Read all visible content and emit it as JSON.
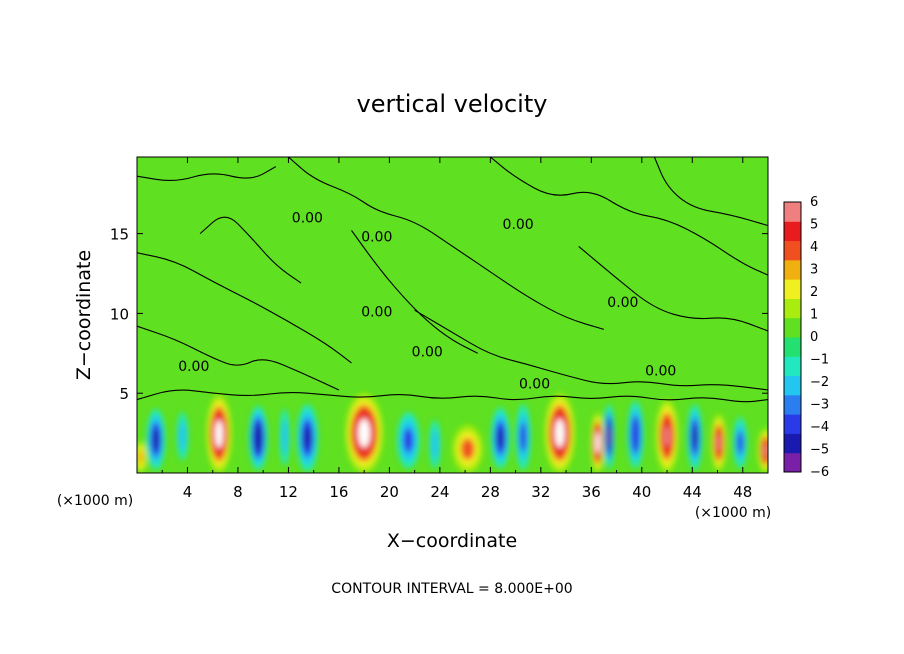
{
  "chart_data": {
    "type": "heatmap",
    "title": "vertical velocity",
    "xlabel": "X−coordinate",
    "ylabel": "Z−coordinate",
    "x_unit_left": "(×1000 m)",
    "x_unit_right": "(×1000 m)",
    "xlim": [
      0,
      50
    ],
    "ylim": [
      0,
      19.8
    ],
    "x_ticks": [
      4,
      8,
      12,
      16,
      20,
      24,
      28,
      32,
      36,
      40,
      44,
      48
    ],
    "y_ticks": [
      5,
      10,
      15
    ],
    "colorbar": {
      "min": -6,
      "max": 6,
      "ticks": [
        "6",
        "5",
        "4",
        "3",
        "2",
        "1",
        "0",
        "−1",
        "−2",
        "−3",
        "−4",
        "−5",
        "−6"
      ],
      "colors": [
        "#7a1fa8",
        "#1a1ab0",
        "#2a3ae8",
        "#2a7ef0",
        "#22c6f0",
        "#22e8c0",
        "#24e070",
        "#5fe020",
        "#a8ec10",
        "#f0f020",
        "#f0b010",
        "#f05020",
        "#e81c1c",
        "#f08080"
      ]
    },
    "contour_label": "0.00",
    "note": "CONTOUR INTERVAL = 8.000E+00",
    "cells": [
      {
        "x": 0.3,
        "z": 0.0,
        "w": 1.0,
        "h": 2.0,
        "v": 2.5
      },
      {
        "x": 1.5,
        "z": 0.2,
        "w": 1.5,
        "h": 3.8,
        "v": -3.8
      },
      {
        "x": 3.6,
        "z": 0.8,
        "w": 0.9,
        "h": 3.0,
        "v": -1.6
      },
      {
        "x": 6.5,
        "z": 0.0,
        "w": 2.0,
        "h": 4.9,
        "v": 6
      },
      {
        "x": 9.6,
        "z": 0.2,
        "w": 1.5,
        "h": 4.0,
        "v": -4.6
      },
      {
        "x": 11.7,
        "z": 0.5,
        "w": 0.8,
        "h": 3.5,
        "v": -1.8
      },
      {
        "x": 13.5,
        "z": 0.1,
        "w": 1.7,
        "h": 4.2,
        "v": -4.4
      },
      {
        "x": 18.0,
        "z": 0.0,
        "w": 3.0,
        "h": 5.0,
        "v": 6
      },
      {
        "x": 21.5,
        "z": 0.3,
        "w": 1.8,
        "h": 3.5,
        "v": -3.0
      },
      {
        "x": 23.6,
        "z": 0.3,
        "w": 0.9,
        "h": 3.0,
        "v": -2.0
      },
      {
        "x": 26.2,
        "z": 0.0,
        "w": 2.4,
        "h": 3.0,
        "v": 3.2
      },
      {
        "x": 28.8,
        "z": 0.3,
        "w": 1.5,
        "h": 3.8,
        "v": -4.2
      },
      {
        "x": 30.6,
        "z": 0.2,
        "w": 1.2,
        "h": 4.1,
        "v": -3.4
      },
      {
        "x": 33.5,
        "z": 0.0,
        "w": 2.4,
        "h": 5.0,
        "v": 6
      },
      {
        "x": 36.5,
        "z": 0.0,
        "w": 1.1,
        "h": 3.8,
        "v": 5.6
      },
      {
        "x": 37.4,
        "z": 0.3,
        "w": 0.9,
        "h": 4.0,
        "v": -5.0
      },
      {
        "x": 39.5,
        "z": 0.3,
        "w": 1.3,
        "h": 4.2,
        "v": -3.6
      },
      {
        "x": 42.0,
        "z": 0.0,
        "w": 1.8,
        "h": 4.6,
        "v": 5.4
      },
      {
        "x": 44.2,
        "z": 0.2,
        "w": 1.2,
        "h": 4.1,
        "v": -3.8
      },
      {
        "x": 46.1,
        "z": 0.1,
        "w": 1.2,
        "h": 3.6,
        "v": 4.8
      },
      {
        "x": 47.8,
        "z": 0.3,
        "w": 1.1,
        "h": 3.2,
        "v": -3.2
      },
      {
        "x": 49.8,
        "z": 0.0,
        "w": 1.2,
        "h": 2.8,
        "v": 4.8
      }
    ],
    "contours": [
      [
        [
          0,
          18.6
        ],
        [
          3,
          18.2
        ],
        [
          6,
          18.9
        ],
        [
          9,
          18.3
        ],
        [
          11,
          19.2
        ]
      ],
      [
        [
          12,
          19.8
        ],
        [
          14,
          18.4
        ],
        [
          17,
          17.5
        ],
        [
          19,
          16.4
        ],
        [
          22,
          15.8
        ],
        [
          25,
          14.2
        ],
        [
          28,
          12.6
        ],
        [
          31,
          11.0
        ],
        [
          34,
          9.7
        ],
        [
          37,
          9.0
        ]
      ],
      [
        [
          28,
          19.8
        ],
        [
          30,
          18.5
        ],
        [
          33,
          17.2
        ],
        [
          36,
          17.8
        ],
        [
          39,
          16.3
        ],
        [
          42,
          15.9
        ],
        [
          45,
          14.7
        ],
        [
          48,
          13.1
        ],
        [
          50,
          12.4
        ]
      ],
      [
        [
          0,
          13.8
        ],
        [
          3,
          13.3
        ],
        [
          6,
          12.0
        ],
        [
          9,
          10.8
        ],
        [
          12,
          9.5
        ],
        [
          15,
          8.1
        ],
        [
          17,
          6.9
        ]
      ],
      [
        [
          0,
          9.2
        ],
        [
          3,
          8.4
        ],
        [
          6,
          7.2
        ],
        [
          8,
          6.6
        ],
        [
          10,
          7.3
        ],
        [
          13,
          6.3
        ],
        [
          16,
          5.2
        ]
      ],
      [
        [
          22,
          10.2
        ],
        [
          25,
          8.8
        ],
        [
          28,
          7.4
        ],
        [
          31,
          6.8
        ],
        [
          34,
          6.1
        ],
        [
          37,
          5.5
        ],
        [
          40,
          5.8
        ],
        [
          43,
          5.4
        ],
        [
          46,
          5.6
        ],
        [
          50,
          5.2
        ]
      ],
      [
        [
          17,
          15.2
        ],
        [
          19,
          13.0
        ],
        [
          21,
          11.1
        ],
        [
          23,
          9.5
        ],
        [
          25,
          8.3
        ],
        [
          27,
          7.5
        ]
      ],
      [
        [
          35,
          14.2
        ],
        [
          38,
          12.2
        ],
        [
          41,
          10.3
        ],
        [
          44,
          9.6
        ],
        [
          47,
          9.8
        ],
        [
          50,
          8.9
        ]
      ],
      [
        [
          0,
          4.6
        ],
        [
          3,
          5.3
        ],
        [
          6,
          5.0
        ],
        [
          9,
          4.8
        ],
        [
          12,
          5.1
        ],
        [
          15,
          4.9
        ],
        [
          18,
          4.7
        ],
        [
          21,
          5.0
        ],
        [
          24,
          4.6
        ],
        [
          27,
          4.9
        ],
        [
          30,
          4.5
        ],
        [
          33,
          4.9
        ],
        [
          36,
          4.6
        ],
        [
          39,
          4.9
        ],
        [
          42,
          4.5
        ],
        [
          45,
          4.8
        ],
        [
          48,
          4.4
        ],
        [
          50,
          4.6
        ]
      ],
      [
        [
          5,
          15.0
        ],
        [
          7,
          16.4
        ],
        [
          9,
          14.8
        ],
        [
          11,
          13.0
        ],
        [
          13,
          11.9
        ]
      ],
      [
        [
          41,
          19.8
        ],
        [
          42,
          17.9
        ],
        [
          44,
          16.6
        ],
        [
          47,
          16.2
        ],
        [
          50,
          15.5
        ]
      ]
    ],
    "contour_labels": [
      {
        "x": 13.5,
        "z": 15.7
      },
      {
        "x": 19.0,
        "z": 14.5
      },
      {
        "x": 30.2,
        "z": 15.3
      },
      {
        "x": 19.0,
        "z": 9.8
      },
      {
        "x": 23.0,
        "z": 7.3
      },
      {
        "x": 38.5,
        "z": 10.4
      },
      {
        "x": 41.5,
        "z": 6.1
      },
      {
        "x": 4.5,
        "z": 6.4
      },
      {
        "x": 31.5,
        "z": 5.3
      }
    ]
  }
}
